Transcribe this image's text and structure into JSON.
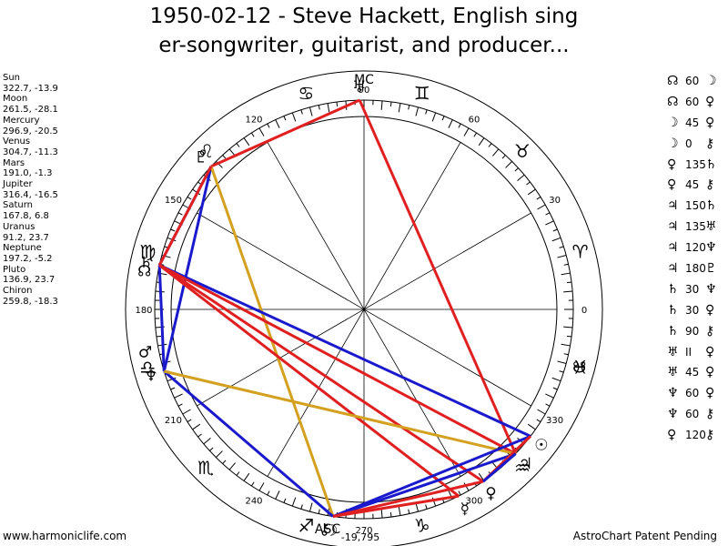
{
  "title_lines": [
    "1950-02-12 - Steve Hackett, English sing",
    "er-songwriter, guitarist, and producer..."
  ],
  "footer": {
    "left": "www.harmoniclife.com",
    "right": "AstroChart Patent Pending"
  },
  "chart_data": {
    "type": "scatter",
    "description_type": "astrological natal wheel",
    "degree_labels": [
      "0",
      "30",
      "60",
      "90",
      "120",
      "150",
      "180",
      "210",
      "240",
      "270",
      "300",
      "330"
    ],
    "zodiac_signs": [
      {
        "glyph": "♈",
        "name": "Aries",
        "longitude": 15
      },
      {
        "glyph": "♉",
        "name": "Taurus",
        "longitude": 45
      },
      {
        "glyph": "♊",
        "name": "Gemini",
        "longitude": 75
      },
      {
        "glyph": "♋",
        "name": "Cancer",
        "longitude": 105
      },
      {
        "glyph": "♌",
        "name": "Leo",
        "longitude": 135
      },
      {
        "glyph": "♍",
        "name": "Virgo",
        "longitude": 165
      },
      {
        "glyph": "♎",
        "name": "Libra",
        "longitude": 195
      },
      {
        "glyph": "♏",
        "name": "Scorpio",
        "longitude": 225
      },
      {
        "glyph": "♐",
        "name": "Sagittarius",
        "longitude": 255
      },
      {
        "glyph": "♑",
        "name": "Capricorn",
        "longitude": 285
      },
      {
        "glyph": "♒",
        "name": "Aquarius",
        "longitude": 315
      },
      {
        "glyph": "♓",
        "name": "Pisces",
        "longitude": 345
      }
    ],
    "bodies": [
      {
        "name": "Sun",
        "glyph": "☉",
        "longitude": 322.7,
        "latitude": -13.9,
        "color": "#1a1acc"
      },
      {
        "name": "Moon",
        "glyph": "☽",
        "longitude": 261.5,
        "latitude": -28.1,
        "color": "#1a1acc"
      },
      {
        "name": "Mercury",
        "glyph": "☿",
        "longitude": 296.9,
        "latitude": -20.5,
        "color": "#e02020"
      },
      {
        "name": "Venus",
        "glyph": "♀",
        "longitude": 304.7,
        "latitude": -11.3,
        "color": "#e02020"
      },
      {
        "name": "Mars",
        "glyph": "♂",
        "longitude": 191.0,
        "latitude": -1.3,
        "color": "#1a1acc"
      },
      {
        "name": "Jupiter",
        "glyph": "♃",
        "longitude": 316.4,
        "latitude": -16.5,
        "color": "#e02020"
      },
      {
        "name": "Saturn",
        "glyph": "♄",
        "longitude": 167.8,
        "latitude": 6.8,
        "color": "#1a1acc"
      },
      {
        "name": "Uranus",
        "glyph": "♅",
        "longitude": 91.2,
        "latitude": 23.7,
        "color": "#e02020"
      },
      {
        "name": "Neptune",
        "glyph": "♆",
        "longitude": 197.2,
        "latitude": -5.2,
        "color": "#1a1acc"
      },
      {
        "name": "Pluto",
        "glyph": "♇",
        "longitude": 136.9,
        "latitude": 23.7,
        "color": "#e02020"
      },
      {
        "name": "Chiron",
        "glyph": "⚷",
        "longitude": 259.8,
        "latitude": -18.3,
        "color": "#e02020"
      }
    ],
    "extra_points": [
      {
        "name": "North Node",
        "glyph": "☊",
        "longitude": 170
      },
      {
        "name": "South Node",
        "glyph": "☋",
        "longitude": 345
      }
    ],
    "angles": [
      {
        "glyph": "MC",
        "label": "90"
      },
      {
        "glyph": "ASC",
        "label": "-19,795"
      }
    ],
    "aspect_lines": [
      {
        "from": "Uranus",
        "to": "Pluto",
        "color": "#e02020"
      },
      {
        "from": "Uranus",
        "to": "Jupiter",
        "color": "#e02020"
      },
      {
        "from": "Pluto",
        "to": "Saturn",
        "color": "#1a1acc"
      },
      {
        "from": "Pluto",
        "to": "Neptune",
        "color": "#1a1acc"
      },
      {
        "from": "Pluto",
        "to": "Moon",
        "color": "#d4a020"
      },
      {
        "from": "Saturn",
        "to": "Pluto",
        "color": "#e02020"
      },
      {
        "from": "Saturn",
        "to": "Neptune",
        "color": "#1a1acc"
      },
      {
        "from": "Saturn",
        "to": "Sun",
        "color": "#1a1acc"
      },
      {
        "from": "Saturn",
        "to": "Jupiter",
        "color": "#e02020"
      },
      {
        "from": "Saturn",
        "to": "Venus",
        "color": "#e02020"
      },
      {
        "from": "Saturn",
        "to": "Mercury",
        "color": "#e02020"
      },
      {
        "from": "Neptune",
        "to": "Moon",
        "color": "#1a1acc"
      },
      {
        "from": "Neptune",
        "to": "Jupiter",
        "color": "#d4a020"
      },
      {
        "from": "Moon",
        "to": "Sun",
        "color": "#1a1acc"
      },
      {
        "from": "Moon",
        "to": "Jupiter",
        "color": "#1a1acc"
      },
      {
        "from": "Moon",
        "to": "Venus",
        "color": "#e02020"
      },
      {
        "from": "Moon",
        "to": "Mercury",
        "color": "#e02020"
      },
      {
        "from": "Venus",
        "to": "Sun",
        "color": "#e02020"
      },
      {
        "from": "Venus",
        "to": "Jupiter",
        "color": "#1a1acc"
      }
    ]
  },
  "positions_list": [
    {
      "name": "Sun",
      "coords": "322.7, -13.9"
    },
    {
      "name": "Moon",
      "coords": "261.5, -28.1"
    },
    {
      "name": "Mercury",
      "coords": "296.9, -20.5"
    },
    {
      "name": "Venus",
      "coords": "304.7, -11.3"
    },
    {
      "name": "Mars",
      "coords": "191.0, -1.3"
    },
    {
      "name": "Jupiter",
      "coords": "316.4, -16.5"
    },
    {
      "name": "Saturn",
      "coords": "167.8, 6.8"
    },
    {
      "name": "Uranus",
      "coords": "91.2, 23.7"
    },
    {
      "name": "Neptune",
      "coords": "197.2, -5.2"
    },
    {
      "name": "Pluto",
      "coords": "136.9, 23.7"
    },
    {
      "name": "Chiron",
      "coords": "259.8, -18.3"
    }
  ],
  "aspects_list": [
    {
      "a": "☊",
      "angle": "60",
      "b": "☽"
    },
    {
      "a": "☊",
      "angle": "60",
      "b": "♀"
    },
    {
      "a": "☽",
      "angle": "45",
      "b": "♀"
    },
    {
      "a": "☽",
      "angle": "0",
      "b": "⚷"
    },
    {
      "a": "♀",
      "angle": "135",
      "b": "♄"
    },
    {
      "a": "♀",
      "angle": "45",
      "b": "⚷"
    },
    {
      "a": "♃",
      "angle": "150",
      "b": "♄"
    },
    {
      "a": "♃",
      "angle": "135",
      "b": "♅"
    },
    {
      "a": "♃",
      "angle": "120",
      "b": "♆"
    },
    {
      "a": "♃",
      "angle": "180",
      "b": "♇"
    },
    {
      "a": "♄",
      "angle": "30",
      "b": "♆"
    },
    {
      "a": "♄",
      "angle": "30",
      "b": "♀"
    },
    {
      "a": "♄",
      "angle": "90",
      "b": "⚷"
    },
    {
      "a": "♅",
      "angle": "II",
      "b": "♀"
    },
    {
      "a": "♅",
      "angle": "45",
      "b": "♀"
    },
    {
      "a": "♆",
      "angle": "60",
      "b": "♀"
    },
    {
      "a": "♆",
      "angle": "60",
      "b": "⚷"
    },
    {
      "a": "♀",
      "angle": "120",
      "b": "⚷"
    }
  ]
}
